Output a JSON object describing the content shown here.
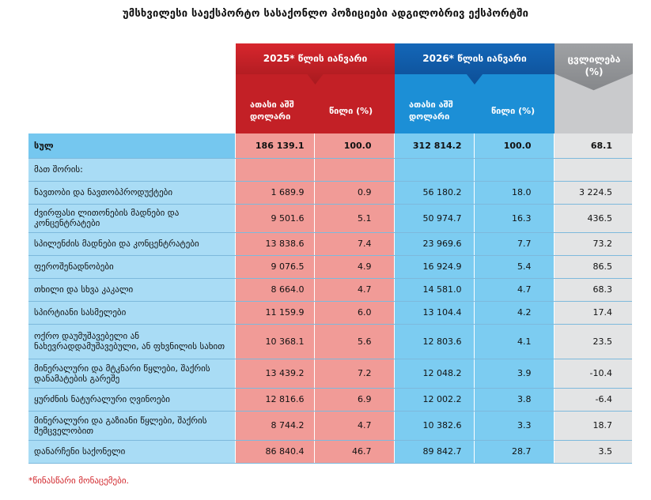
{
  "title": "უმსხვილესი საექსპორტო სასაქონლო პოზიციები ადგილობრივ ექსპორტში",
  "headers": {
    "period_2025": "2025* წლის იანვარი",
    "period_2026": "2026* წლის იანვარი",
    "change": "ცვლილება (%)",
    "thousand_usd": "ათასი აშშ დოლარი",
    "share": "წილი (%)"
  },
  "colors": {
    "red": "#c32026",
    "blue": "#1c8fd6",
    "gray": "#c9cacc"
  },
  "rows": [
    {
      "label": "სულ",
      "v2025": "186 139.1",
      "s2025": "100.0",
      "v2026": "312 814.2",
      "s2026": "100.0",
      "chg": "68.1"
    },
    {
      "label": "მათ შორის:",
      "v2025": "",
      "s2025": "",
      "v2026": "",
      "s2026": "",
      "chg": ""
    },
    {
      "label": "ნავთობი და ნავთობპროდუქტები",
      "v2025": "1 689.9",
      "s2025": "0.9",
      "v2026": "56 180.2",
      "s2026": "18.0",
      "chg": "3 224.5"
    },
    {
      "label": "ძვირფასი ლითონების მადნები და კონცენტრატები",
      "v2025": "9 501.6",
      "s2025": "5.1",
      "v2026": "50 974.7",
      "s2026": "16.3",
      "chg": "436.5"
    },
    {
      "label": "სპილენძის მადნები და კონცენტრატები",
      "v2025": "13 838.6",
      "s2025": "7.4",
      "v2026": "23 969.6",
      "s2026": "7.7",
      "chg": "73.2"
    },
    {
      "label": "ფეროშენადნობები",
      "v2025": "9 076.5",
      "s2025": "4.9",
      "v2026": "16 924.9",
      "s2026": "5.4",
      "chg": "86.5"
    },
    {
      "label": "თხილი და სხვა კაკალი",
      "v2025": "8 664.0",
      "s2025": "4.7",
      "v2026": "14 581.0",
      "s2026": "4.7",
      "chg": "68.3"
    },
    {
      "label": "სპირტიანი სასმელები",
      "v2025": "11 159.9",
      "s2025": "6.0",
      "v2026": "13 104.4",
      "s2026": "4.2",
      "chg": "17.4"
    },
    {
      "label": "ოქრო დაუმუშავებელი ან ნახევრადდამუშავებული, ან ფხვნილის სახით",
      "v2025": "10 368.1",
      "s2025": "5.6",
      "v2026": "12 803.6",
      "s2026": "4.1",
      "chg": "23.5"
    },
    {
      "label": "მინერალური და მტკნარი წყლები, შაქრის დანამატების გარეშე",
      "v2025": "13 439.2",
      "s2025": "7.2",
      "v2026": "12 048.2",
      "s2026": "3.9",
      "chg": "-10.4"
    },
    {
      "label": "ყურძნის ნატურალური ღვინოები",
      "v2025": "12 816.6",
      "s2025": "6.9",
      "v2026": "12 002.2",
      "s2026": "3.8",
      "chg": "-6.4"
    },
    {
      "label": "მინერალური და გაზიანი წყლები, შაქრის შემცველობით",
      "v2025": "8 744.2",
      "s2025": "4.7",
      "v2026": "10 382.6",
      "s2026": "3.3",
      "chg": "18.7"
    },
    {
      "label": "დანარჩენი საქონელი",
      "v2025": "86 840.4",
      "s2025": "46.7",
      "v2026": "89 842.7",
      "s2026": "28.7",
      "chg": "3.5"
    }
  ],
  "footnote": "*წინასწარი მონაცემები."
}
